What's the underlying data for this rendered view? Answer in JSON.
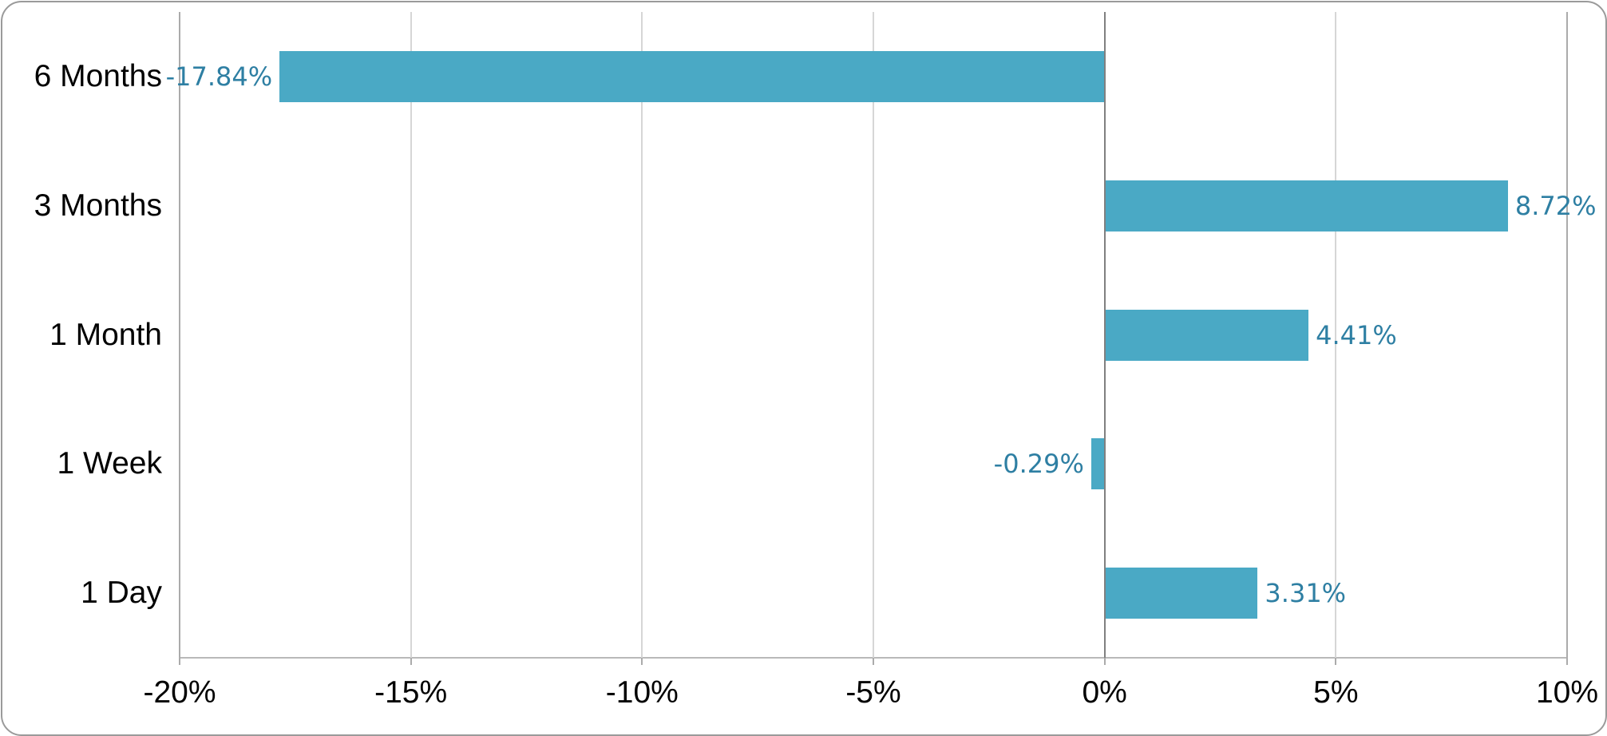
{
  "chart_data": {
    "type": "bar",
    "orientation": "horizontal",
    "title": "",
    "categories": [
      "6 Months",
      "3 Months",
      "1 Month",
      "1 Week",
      "1 Day"
    ],
    "values": [
      -17.84,
      8.72,
      4.41,
      -0.29,
      3.31
    ],
    "value_labels": [
      "-17.84%",
      "8.72%",
      "4.41%",
      "-0.29%",
      "3.31%"
    ],
    "x_tick_values": [
      -20,
      -15,
      -10,
      -5,
      0,
      5,
      10
    ],
    "x_tick_labels": [
      "-20%",
      "-15%",
      "-10%",
      "-5%",
      "0%",
      "5%",
      "10%"
    ],
    "xlim": [
      -20,
      10
    ],
    "grid": "vertical-only",
    "legend": "none",
    "colors": {
      "bar": "#4aa9c5",
      "value_label_text": "#2e7fa3",
      "gridline": "#d6d6d6",
      "outer_gridline": "#ababab",
      "zero_line": "#808080",
      "axis_line": "#b9b9b9",
      "axis_text": "#000000",
      "card_border": "#9a9a9a",
      "background": "#ffffff"
    }
  }
}
